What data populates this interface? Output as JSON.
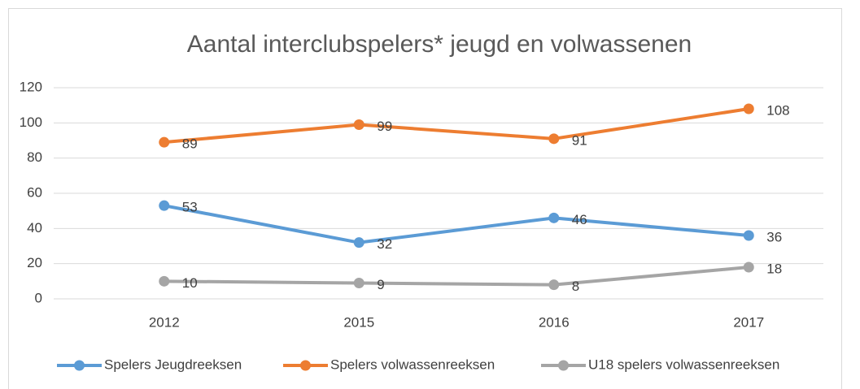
{
  "chart_data": {
    "type": "line",
    "title": "Aantal interclubspelers* jeugd en volwassenen",
    "categories": [
      "2012",
      "2015",
      "2016",
      "2017"
    ],
    "series": [
      {
        "name": "Spelers Jeugdreeksen",
        "color": "#5b9bd5",
        "values": [
          53,
          32,
          46,
          36
        ]
      },
      {
        "name": "Spelers volwassenreeksen",
        "color": "#ed7d31",
        "values": [
          89,
          99,
          91,
          108
        ]
      },
      {
        "name": "U18 spelers volwassenreeksen",
        "color": "#a5a5a5",
        "values": [
          10,
          9,
          8,
          18
        ]
      }
    ],
    "ylim": [
      0,
      120
    ],
    "yticks": [
      0,
      20,
      40,
      60,
      80,
      100,
      120
    ],
    "grid": true,
    "legend": "bottom"
  }
}
